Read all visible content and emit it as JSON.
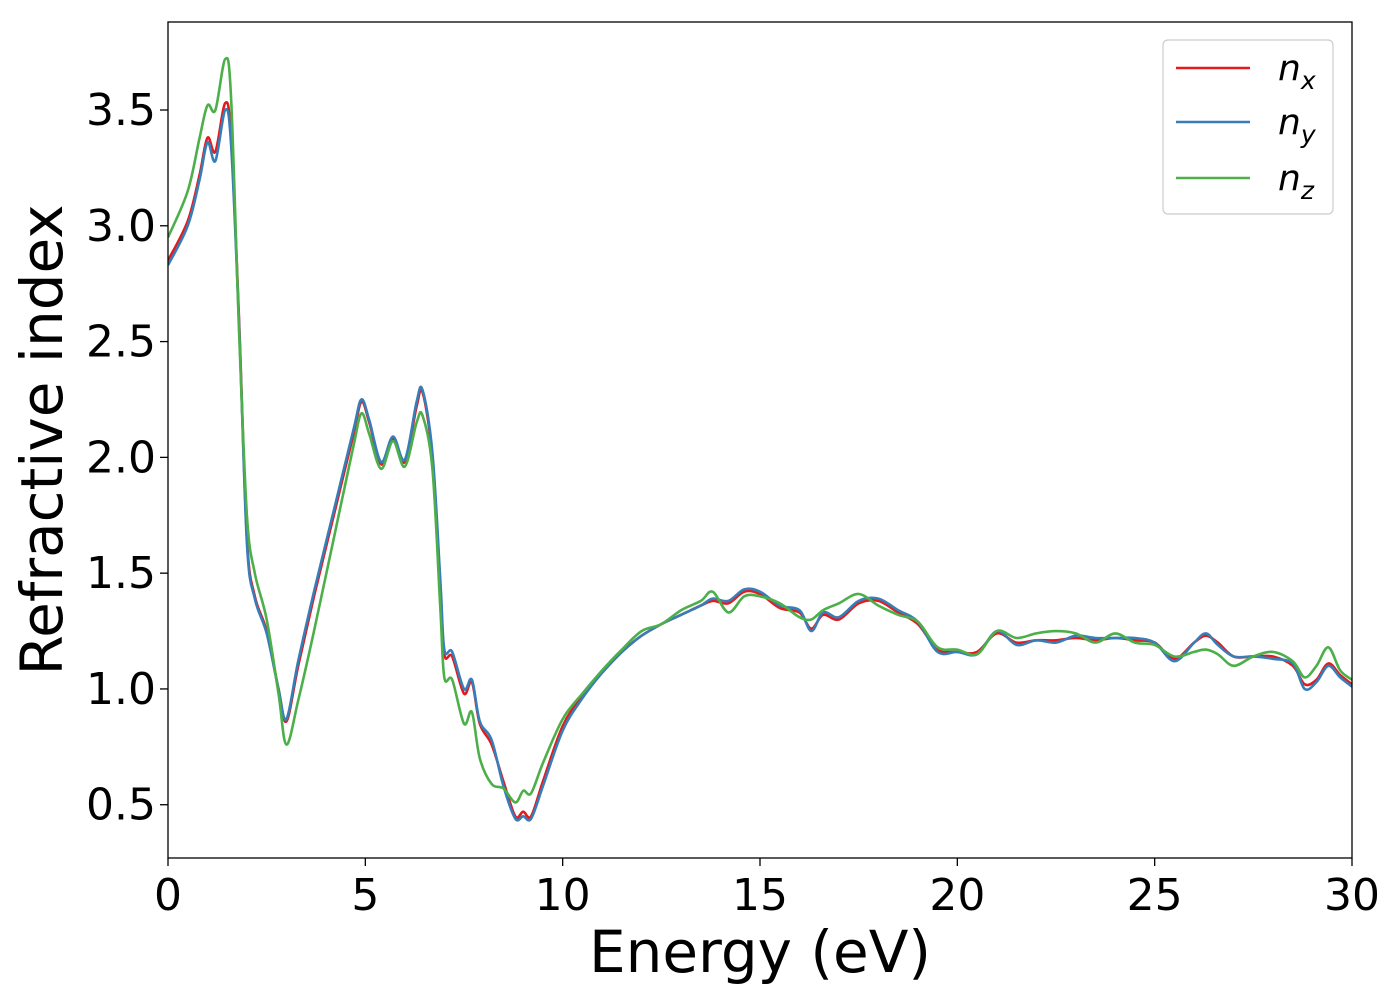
{
  "chart_data": {
    "type": "line",
    "xlabel": "Energy (eV)",
    "ylabel": "Refractive index",
    "xlim": [
      0,
      30
    ],
    "ylim": [
      0.27,
      3.88
    ],
    "xticks": [
      0,
      5,
      10,
      15,
      20,
      25,
      30
    ],
    "xtick_labels": [
      "0",
      "5",
      "10",
      "15",
      "20",
      "25",
      "30"
    ],
    "yticks": [
      0.5,
      1.0,
      1.5,
      2.0,
      2.5,
      3.0,
      3.5
    ],
    "ytick_labels": [
      "0.5",
      "1.0",
      "1.5",
      "2.0",
      "2.5",
      "3.0",
      "3.5"
    ],
    "grid": false,
    "legend_position": "top-right",
    "x": [
      0,
      0.5,
      0.8,
      1.0,
      1.2,
      1.45,
      1.6,
      1.8,
      2.0,
      2.2,
      2.5,
      2.8,
      3.0,
      3.3,
      3.7,
      4.2,
      4.7,
      4.9,
      5.1,
      5.4,
      5.7,
      6.0,
      6.3,
      6.45,
      6.7,
      6.9,
      7.0,
      7.2,
      7.5,
      7.7,
      7.9,
      8.2,
      8.5,
      8.8,
      9.0,
      9.2,
      9.5,
      10,
      10.5,
      11,
      11.5,
      12,
      12.5,
      13,
      13.5,
      13.8,
      14.2,
      14.6,
      15,
      15.5,
      16,
      16.3,
      16.6,
      17,
      17.5,
      18,
      18.5,
      19,
      19.5,
      20,
      20.5,
      21,
      21.5,
      22,
      22.5,
      23,
      23.5,
      24,
      24.5,
      25,
      25.5,
      26,
      26.3,
      26.6,
      27,
      27.5,
      28,
      28.5,
      28.8,
      29.1,
      29.4,
      29.7,
      30
    ],
    "series": [
      {
        "name": "x",
        "color": "#e41a1c",
        "values": [
          2.85,
          3.02,
          3.22,
          3.38,
          3.32,
          3.53,
          3.38,
          2.6,
          1.65,
          1.4,
          1.25,
          1.0,
          0.86,
          1.1,
          1.4,
          1.75,
          2.1,
          2.24,
          2.15,
          1.97,
          2.08,
          1.98,
          2.22,
          2.28,
          2.0,
          1.45,
          1.15,
          1.14,
          0.98,
          1.03,
          0.85,
          0.76,
          0.6,
          0.45,
          0.47,
          0.45,
          0.6,
          0.84,
          0.97,
          1.07,
          1.16,
          1.23,
          1.28,
          1.32,
          1.36,
          1.38,
          1.37,
          1.42,
          1.41,
          1.35,
          1.33,
          1.26,
          1.32,
          1.3,
          1.37,
          1.38,
          1.33,
          1.28,
          1.17,
          1.16,
          1.16,
          1.24,
          1.2,
          1.21,
          1.21,
          1.22,
          1.21,
          1.22,
          1.21,
          1.2,
          1.13,
          1.2,
          1.23,
          1.2,
          1.14,
          1.14,
          1.14,
          1.1,
          1.02,
          1.04,
          1.11,
          1.06,
          1.02
        ]
      },
      {
        "name": "y",
        "color": "#377eb8",
        "values": [
          2.83,
          3.0,
          3.2,
          3.36,
          3.28,
          3.5,
          3.35,
          2.58,
          1.63,
          1.39,
          1.24,
          1.0,
          0.87,
          1.12,
          1.42,
          1.77,
          2.12,
          2.25,
          2.16,
          1.98,
          2.09,
          1.99,
          2.24,
          2.29,
          2.02,
          1.47,
          1.17,
          1.16,
          1.0,
          1.04,
          0.86,
          0.78,
          0.58,
          0.44,
          0.45,
          0.44,
          0.58,
          0.82,
          0.96,
          1.07,
          1.16,
          1.23,
          1.28,
          1.32,
          1.36,
          1.39,
          1.38,
          1.43,
          1.42,
          1.36,
          1.34,
          1.25,
          1.33,
          1.31,
          1.38,
          1.39,
          1.34,
          1.29,
          1.16,
          1.16,
          1.15,
          1.25,
          1.19,
          1.21,
          1.2,
          1.23,
          1.22,
          1.22,
          1.22,
          1.2,
          1.12,
          1.2,
          1.24,
          1.19,
          1.14,
          1.14,
          1.13,
          1.11,
          1.0,
          1.03,
          1.1,
          1.05,
          1.01
        ]
      },
      {
        "name": "z",
        "color": "#4daf4a",
        "values": [
          2.95,
          3.15,
          3.38,
          3.52,
          3.5,
          3.72,
          3.55,
          2.55,
          1.75,
          1.5,
          1.3,
          0.98,
          0.76,
          0.95,
          1.25,
          1.65,
          2.05,
          2.19,
          2.1,
          1.95,
          2.07,
          1.96,
          2.15,
          2.18,
          1.95,
          1.35,
          1.05,
          1.04,
          0.85,
          0.9,
          0.7,
          0.59,
          0.57,
          0.51,
          0.56,
          0.55,
          0.68,
          0.87,
          0.98,
          1.08,
          1.17,
          1.25,
          1.28,
          1.34,
          1.38,
          1.42,
          1.33,
          1.4,
          1.4,
          1.37,
          1.31,
          1.3,
          1.34,
          1.37,
          1.41,
          1.36,
          1.32,
          1.29,
          1.18,
          1.17,
          1.15,
          1.25,
          1.22,
          1.24,
          1.25,
          1.24,
          1.2,
          1.24,
          1.2,
          1.19,
          1.14,
          1.16,
          1.17,
          1.15,
          1.1,
          1.14,
          1.16,
          1.12,
          1.05,
          1.1,
          1.18,
          1.08,
          1.04
        ]
      }
    ]
  },
  "colors": {
    "x": "#e41a1c",
    "y": "#377eb8",
    "z": "#4daf4a"
  }
}
